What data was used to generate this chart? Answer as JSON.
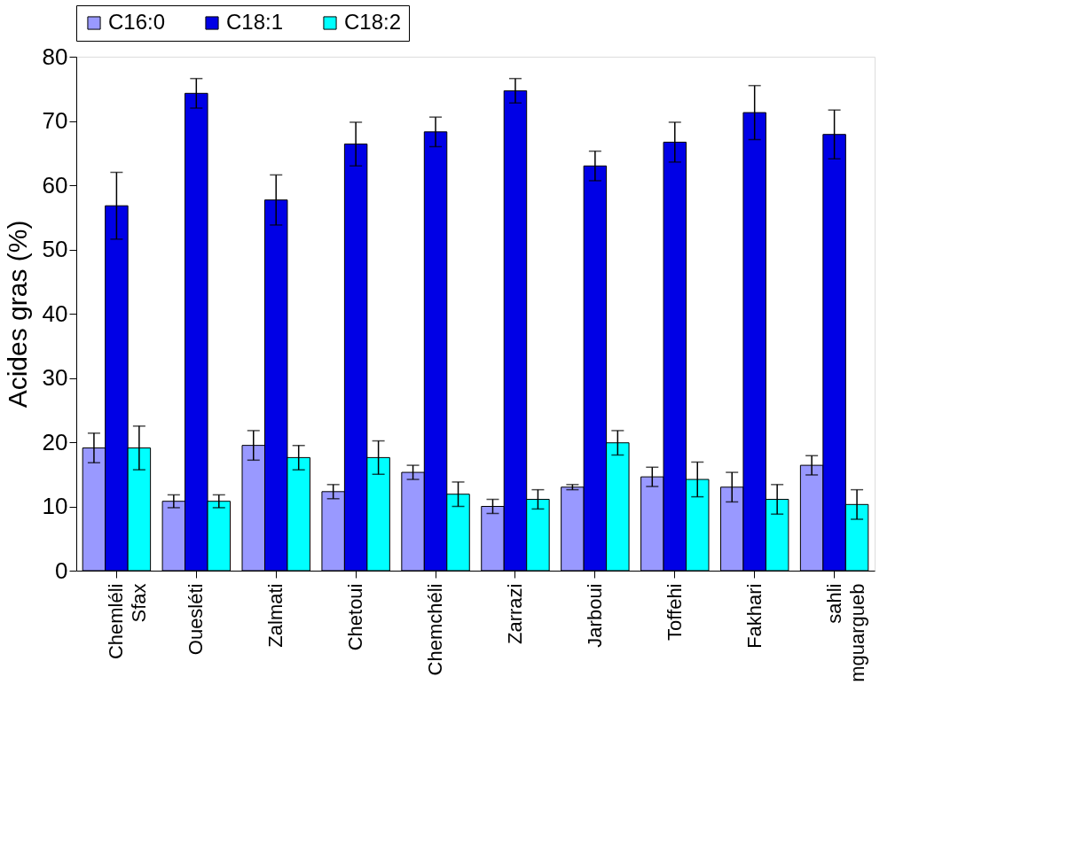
{
  "chart_data": {
    "type": "bar",
    "ylabel": "Acides gras (%)",
    "categories": [
      "Chemléli Sfax",
      "Ouesléti",
      "Zalmati",
      "Chetoui",
      "Chemchéli",
      "Zarrazi",
      "Jarboui",
      "Toffehi",
      "Fakhari",
      "sahli mguargueb"
    ],
    "series": [
      {
        "name": "C16:0",
        "color": "#9999ff",
        "values": [
          19.1,
          10.8,
          19.5,
          12.3,
          15.3,
          10,
          13,
          14.6,
          13,
          16.4
        ],
        "errors": [
          2.3,
          1,
          2.3,
          1.1,
          1.1,
          1.1,
          0.4,
          1.5,
          2.3,
          1.5
        ]
      },
      {
        "name": "C18:1",
        "color": "#0000e6",
        "values": [
          56.8,
          74.3,
          57.7,
          66.4,
          68.3,
          74.7,
          63,
          66.7,
          71.3,
          67.9
        ],
        "errors": [
          5.2,
          2.3,
          3.9,
          3.4,
          2.3,
          1.9,
          2.3,
          3.1,
          4.2,
          3.8
        ]
      },
      {
        "name": "C18:2",
        "color": "#00ffff",
        "values": [
          19.1,
          10.8,
          17.6,
          17.6,
          11.9,
          11.1,
          19.9,
          14.2,
          11.1,
          10.3
        ],
        "errors": [
          3.4,
          1,
          1.9,
          2.6,
          1.9,
          1.5,
          1.9,
          2.7,
          2.3,
          2.3
        ]
      }
    ],
    "ylim": [
      0,
      80
    ],
    "yticks": [
      0,
      10,
      20,
      30,
      40,
      50,
      60,
      70,
      80
    ],
    "grid": false,
    "legend": "top"
  }
}
